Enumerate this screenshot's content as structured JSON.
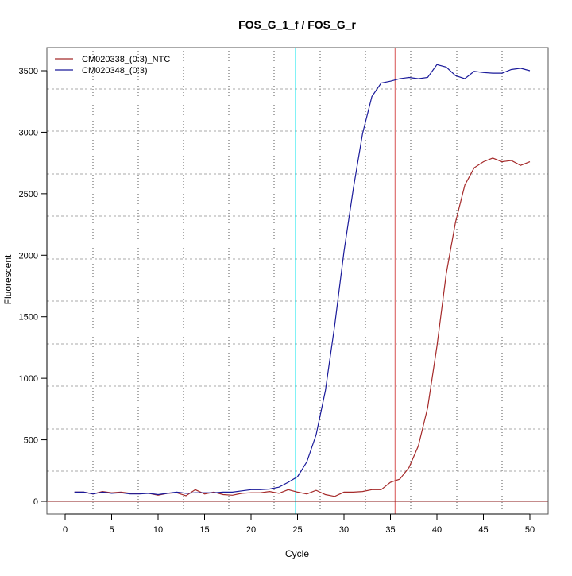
{
  "chart_data": {
    "type": "line",
    "title": "FOS_G_1_f / FOS_G_r",
    "xlabel": "Cycle",
    "ylabel": "Fluorescent",
    "xlim": [
      -2,
      52
    ],
    "ylim": [
      -100,
      3700
    ],
    "xticks": [
      0,
      5,
      10,
      15,
      20,
      25,
      30,
      35,
      40,
      45,
      50
    ],
    "yticks": [
      0,
      500,
      1000,
      1500,
      2000,
      2500,
      3000,
      3500
    ],
    "grid": true,
    "legend_position": "top-left",
    "x": [
      1,
      2,
      3,
      4,
      5,
      6,
      7,
      8,
      9,
      10,
      11,
      12,
      13,
      14,
      15,
      16,
      17,
      18,
      19,
      20,
      21,
      22,
      23,
      24,
      25,
      26,
      27,
      28,
      29,
      30,
      31,
      32,
      33,
      34,
      35,
      36,
      37,
      38,
      39,
      40,
      41,
      42,
      43,
      44,
      45,
      46,
      47,
      48,
      49,
      50
    ],
    "series": [
      {
        "name": "CM020338_(0:3)_NTC",
        "color": "#a52a2a",
        "values": [
          75,
          75,
          60,
          80,
          70,
          75,
          65,
          65,
          65,
          50,
          65,
          70,
          45,
          95,
          60,
          75,
          55,
          50,
          65,
          70,
          70,
          80,
          65,
          95,
          75,
          60,
          90,
          55,
          40,
          75,
          75,
          80,
          95,
          95,
          155,
          180,
          275,
          450,
          760,
          1260,
          1850,
          2270,
          2570,
          2710,
          2760,
          2790,
          2760,
          2770,
          2730,
          2760
        ]
      },
      {
        "name": "CM020348_(0:3)",
        "color": "#1a1a9a",
        "values": [
          75,
          75,
          60,
          75,
          65,
          70,
          60,
          60,
          65,
          55,
          65,
          75,
          65,
          70,
          70,
          70,
          75,
          75,
          85,
          95,
          95,
          100,
          115,
          155,
          200,
          320,
          540,
          900,
          1430,
          2030,
          2540,
          2990,
          3290,
          3400,
          3415,
          3435,
          3445,
          3435,
          3445,
          3550,
          3530,
          3460,
          3435,
          3495,
          3485,
          3480,
          3480,
          3510,
          3520,
          3500
        ]
      }
    ],
    "reference_lines": [
      {
        "orientation": "vertical",
        "value": 24.8,
        "color": "#00e5ee"
      },
      {
        "orientation": "vertical",
        "value": 35.5,
        "color": "#e07a7a"
      },
      {
        "orientation": "horizontal",
        "value": 0,
        "color": "#8b1a1a"
      }
    ]
  }
}
